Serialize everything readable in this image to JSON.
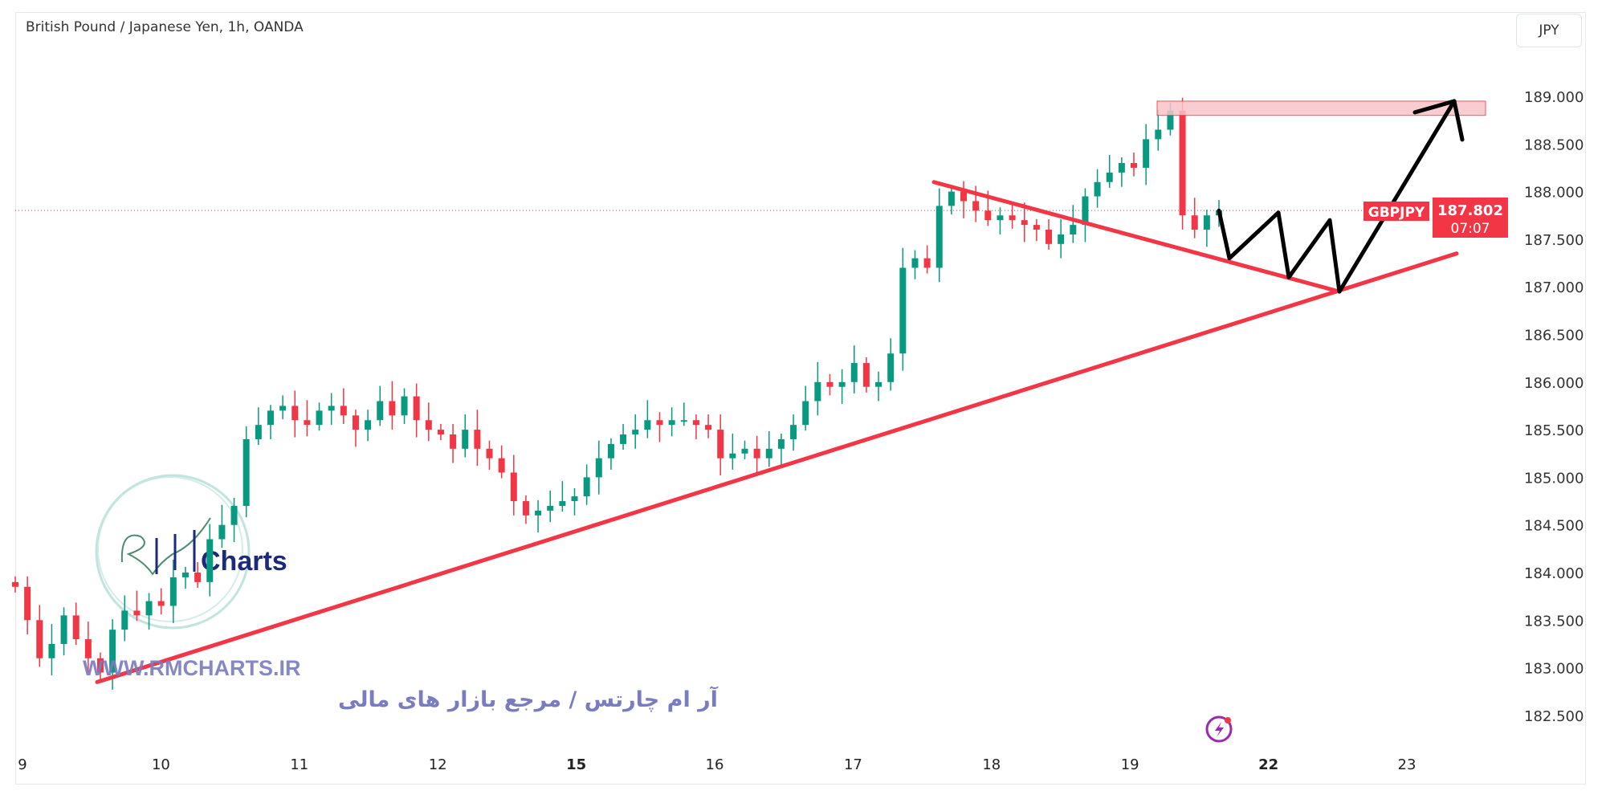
{
  "header": {
    "title": "British Pound / Japanese Yen, 1h, OANDA",
    "currency_button": "JPY"
  },
  "price_label": {
    "symbol": "GBPJPY",
    "price": "187.802",
    "countdown": "07:07",
    "color": "#f23645"
  },
  "watermark": {
    "logo_text": "Charts",
    "url": "WWW.RMCHARTS.IR",
    "tagline": "آر ام چارتس / مرجع بازار های مالی"
  },
  "colors": {
    "up": "#089981",
    "down": "#f23645",
    "drawing_red": "#f23645",
    "drawing_black": "#000000",
    "zone": "#f7c5cb"
  },
  "icons": {
    "bottom": "lightning-icon"
  },
  "chart_data": {
    "type": "candlestick",
    "title": "British Pound / Japanese Yen, 1h, OANDA",
    "ylim": [
      182.2,
      189.4
    ],
    "y_ticks": [
      "189.000",
      "188.500",
      "188.000",
      "187.500",
      "187.000",
      "186.500",
      "186.000",
      "185.500",
      "185.000",
      "184.500",
      "184.000",
      "183.500",
      "183.000",
      "182.500"
    ],
    "x_ticks": [
      "9",
      "10",
      "11",
      "12",
      "15",
      "16",
      "17",
      "18",
      "19",
      "22",
      "23"
    ],
    "first_open": 183.9,
    "closes": [
      183.85,
      183.5,
      183.1,
      183.25,
      183.55,
      183.3,
      183.1,
      182.95,
      183.4,
      183.6,
      183.55,
      183.7,
      183.65,
      183.95,
      184.0,
      183.9,
      184.35,
      184.5,
      184.7,
      185.4,
      185.55,
      185.7,
      185.75,
      185.6,
      185.55,
      185.7,
      185.75,
      185.65,
      185.5,
      185.6,
      185.8,
      185.65,
      185.85,
      185.6,
      185.5,
      185.45,
      185.3,
      185.5,
      185.3,
      185.2,
      185.05,
      184.75,
      184.6,
      184.65,
      184.7,
      184.75,
      184.8,
      185.0,
      185.2,
      185.35,
      185.45,
      185.5,
      185.6,
      185.55,
      185.6,
      185.6,
      185.55,
      185.5,
      185.2,
      185.25,
      185.3,
      185.2,
      185.3,
      185.4,
      185.55,
      185.8,
      186.0,
      185.95,
      186.0,
      186.2,
      185.95,
      186.0,
      186.3,
      187.2,
      187.3,
      187.2,
      187.85,
      188.0,
      187.9,
      187.8,
      187.7,
      187.75,
      187.7,
      187.65,
      187.6,
      187.45,
      187.55,
      187.65,
      187.95,
      188.1,
      188.2,
      188.3,
      188.25,
      188.55,
      188.65,
      188.85,
      187.75,
      187.6,
      187.75,
      187.802
    ],
    "last_price": 187.802,
    "drawings": {
      "support_line": [
        {
          "date": "9",
          "price": 182.85
        },
        {
          "date": "23",
          "price": 187.35
        }
      ],
      "resistance_line": [
        {
          "date": "17",
          "price": 188.1
        },
        {
          "date": "22",
          "price": 186.95
        }
      ],
      "zone": {
        "from": 188.8,
        "to": 188.95
      },
      "projection": [
        187.8,
        187.3,
        187.78,
        187.1,
        187.7,
        186.95,
        188.95
      ]
    }
  }
}
